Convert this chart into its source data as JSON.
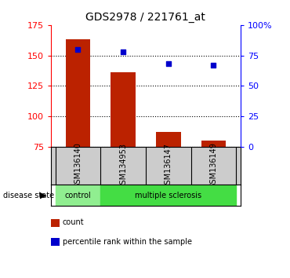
{
  "title": "GDS2978 / 221761_at",
  "samples": [
    "GSM136140",
    "GSM134953",
    "GSM136147",
    "GSM136149"
  ],
  "bar_values": [
    163,
    136,
    87,
    80
  ],
  "bar_bottom": 75,
  "percentile_values": [
    80,
    78,
    68,
    67
  ],
  "ylim_left": [
    75,
    175
  ],
  "ylim_right": [
    0,
    100
  ],
  "yticks_left": [
    75,
    100,
    125,
    150,
    175
  ],
  "yticks_right": [
    0,
    25,
    50,
    75,
    100
  ],
  "ytick_labels_right": [
    "0",
    "25",
    "50",
    "75",
    "100%"
  ],
  "bar_color": "#bb2200",
  "dot_color": "#0000cc",
  "grid_color": "#000000",
  "control_color": "#90ee90",
  "ms_color": "#44dd44",
  "sample_bg_color": "#cccccc",
  "control_label": "control",
  "ms_label": "multiple sclerosis",
  "disease_state_label": "disease state",
  "legend_count": "count",
  "legend_pct": "percentile rank within the sample",
  "bar_width": 0.55,
  "title_fontsize": 10,
  "tick_fontsize": 8,
  "label_fontsize": 7,
  "legend_fontsize": 7
}
